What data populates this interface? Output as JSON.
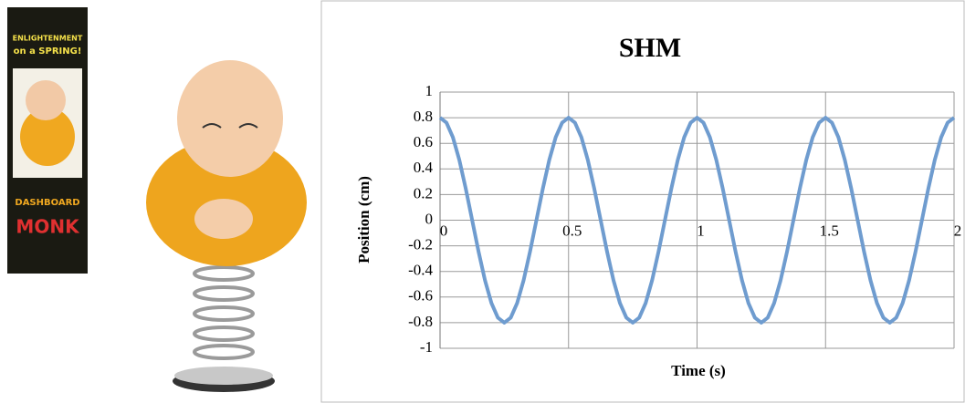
{
  "photo": {
    "box_lines": [
      "ENLIGHTENMENT",
      "on a SPRING!",
      "DASHBOARD",
      "MONK"
    ]
  },
  "chart_data": {
    "type": "line",
    "title": "SHM",
    "xlabel": "Time (s)",
    "ylabel": "Position (cm)",
    "color": "#6f9ccf",
    "grid": true,
    "xlim": [
      0,
      2
    ],
    "xticks": [
      0,
      0.5,
      1,
      1.5,
      2
    ],
    "ylim": [
      -1,
      1
    ],
    "yticks": [
      -1,
      -0.8,
      -0.6,
      -0.4,
      -0.2,
      0,
      0.2,
      0.4,
      0.6,
      0.8,
      1
    ],
    "x": [
      0,
      0.025,
      0.05,
      0.075,
      0.1,
      0.125,
      0.15,
      0.175,
      0.2,
      0.225,
      0.25,
      0.275,
      0.3,
      0.325,
      0.35,
      0.375,
      0.4,
      0.425,
      0.45,
      0.475,
      0.5,
      0.525,
      0.55,
      0.575,
      0.6,
      0.625,
      0.65,
      0.675,
      0.7,
      0.725,
      0.75,
      0.775,
      0.8,
      0.825,
      0.85,
      0.875,
      0.9,
      0.925,
      0.95,
      0.975,
      1,
      1.025,
      1.05,
      1.075,
      1.1,
      1.125,
      1.15,
      1.175,
      1.2,
      1.225,
      1.25,
      1.275,
      1.3,
      1.325,
      1.35,
      1.375,
      1.4,
      1.425,
      1.45,
      1.475,
      1.5,
      1.525,
      1.55,
      1.575,
      1.6,
      1.625,
      1.65,
      1.675,
      1.7,
      1.725,
      1.75,
      1.775,
      1.8,
      1.825,
      1.85,
      1.875,
      1.9,
      1.925,
      1.95,
      1.975,
      2
    ],
    "values": [
      0.8,
      0.761,
      0.647,
      0.47,
      0.247,
      0,
      -0.247,
      -0.47,
      -0.647,
      -0.761,
      -0.8,
      -0.761,
      -0.647,
      -0.47,
      -0.247,
      0,
      0.247,
      0.47,
      0.647,
      0.761,
      0.8,
      0.761,
      0.647,
      0.47,
      0.247,
      0,
      -0.247,
      -0.47,
      -0.647,
      -0.761,
      -0.8,
      -0.761,
      -0.647,
      -0.47,
      -0.247,
      0,
      0.247,
      0.47,
      0.647,
      0.761,
      0.8,
      0.761,
      0.647,
      0.47,
      0.247,
      0,
      -0.247,
      -0.47,
      -0.647,
      -0.761,
      -0.8,
      -0.761,
      -0.647,
      -0.47,
      -0.247,
      0,
      0.247,
      0.47,
      0.647,
      0.761,
      0.8,
      0.761,
      0.647,
      0.47,
      0.247,
      0,
      -0.247,
      -0.47,
      -0.647,
      -0.761,
      -0.8,
      -0.761,
      -0.647,
      -0.47,
      -0.247,
      0,
      0.247,
      0.47,
      0.647,
      0.761,
      0.8
    ]
  }
}
